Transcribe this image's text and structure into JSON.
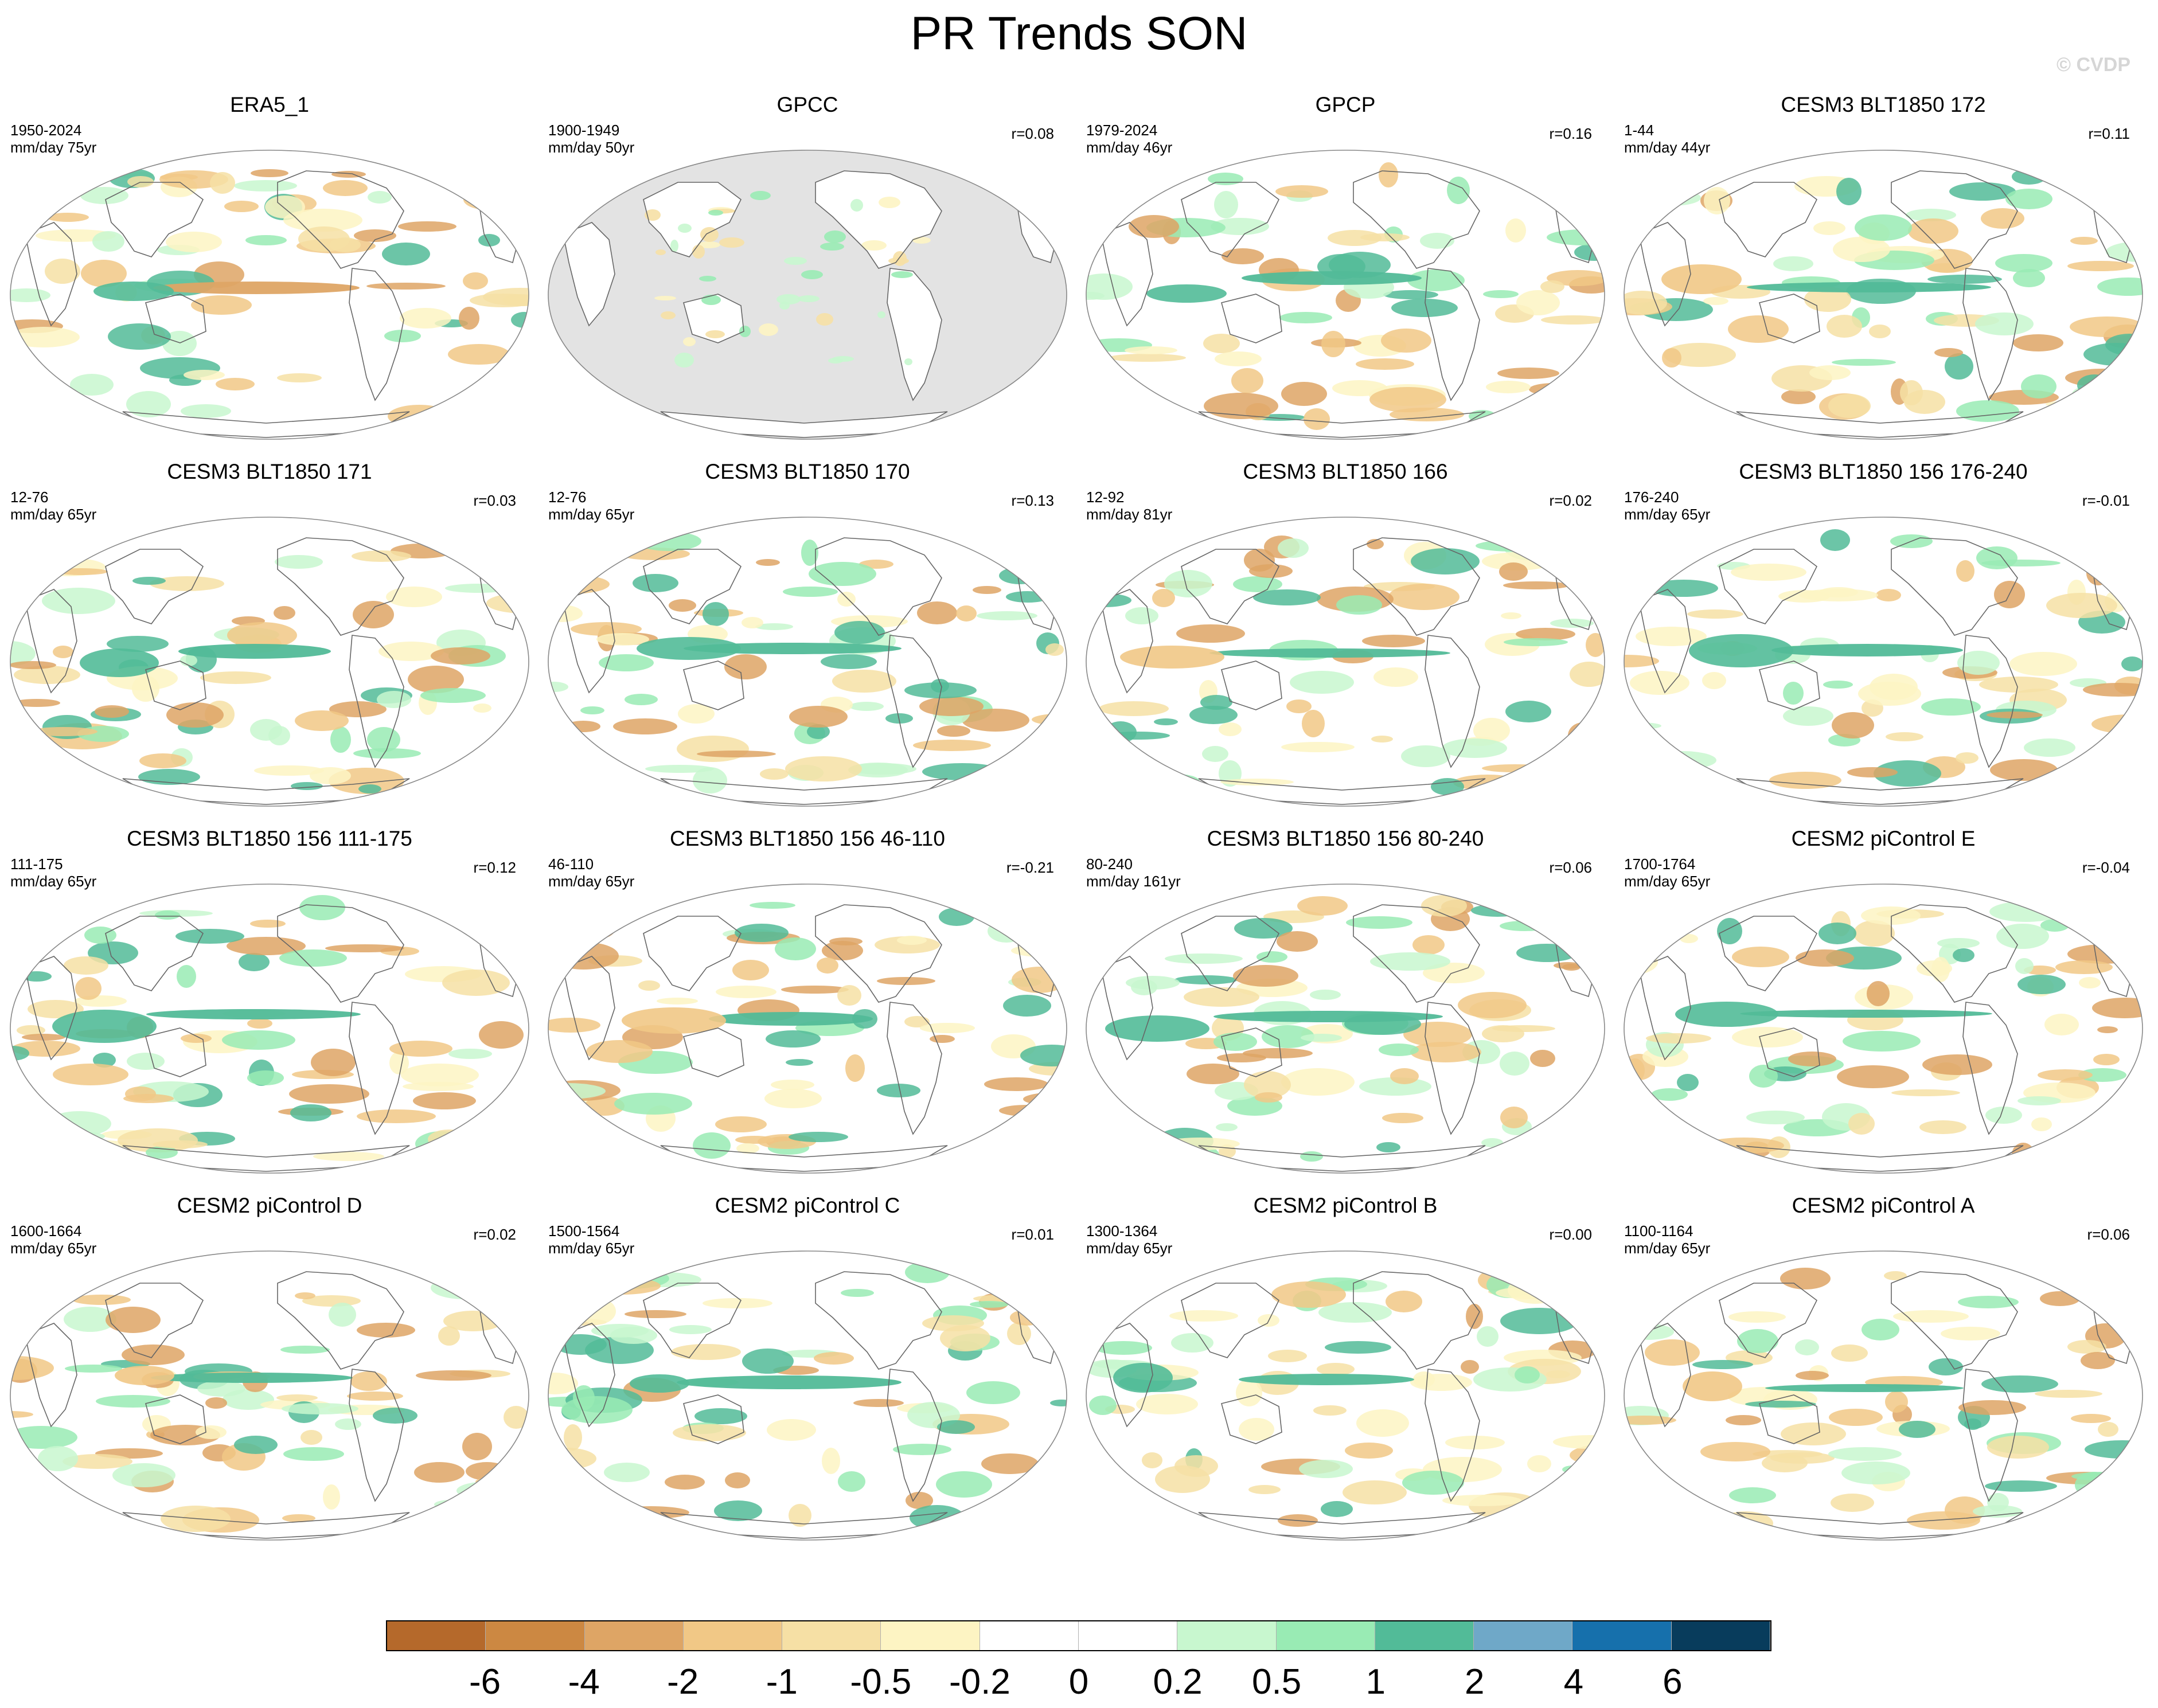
{
  "title": "PR Trends SON",
  "watermark": "© CVDP",
  "panels": [
    {
      "title": "ERA5_1",
      "period": "1950-2024",
      "units": "mm/day 75yr",
      "corr": "",
      "masked": false
    },
    {
      "title": "GPCC",
      "period": "1900-1949",
      "units": "mm/day 50yr",
      "corr": "r=0.08",
      "masked": true
    },
    {
      "title": "GPCP",
      "period": "1979-2024",
      "units": "mm/day 46yr",
      "corr": "r=0.16",
      "masked": false
    },
    {
      "title": "CESM3 BLT1850 172",
      "period": "1-44",
      "units": "mm/day 44yr",
      "corr": "r=0.11",
      "masked": false
    },
    {
      "title": "CESM3 BLT1850 171",
      "period": "12-76",
      "units": "mm/day 65yr",
      "corr": "r=0.03",
      "masked": false
    },
    {
      "title": "CESM3 BLT1850 170",
      "period": "12-76",
      "units": "mm/day 65yr",
      "corr": "r=0.13",
      "masked": false
    },
    {
      "title": "CESM3 BLT1850 166",
      "period": "12-92",
      "units": "mm/day 81yr",
      "corr": "r=0.02",
      "masked": false
    },
    {
      "title": "CESM3 BLT1850 156 176-240",
      "period": "176-240",
      "units": "mm/day 65yr",
      "corr": "r=-0.01",
      "masked": false
    },
    {
      "title": "CESM3 BLT1850 156 111-175",
      "period": "111-175",
      "units": "mm/day 65yr",
      "corr": "r=0.12",
      "masked": false
    },
    {
      "title": "CESM3 BLT1850 156 46-110",
      "period": "46-110",
      "units": "mm/day 65yr",
      "corr": "r=-0.21",
      "masked": false
    },
    {
      "title": "CESM3 BLT1850 156 80-240",
      "period": "80-240",
      "units": "mm/day 161yr",
      "corr": "r=0.06",
      "masked": false
    },
    {
      "title": "CESM2 piControl E",
      "period": "1700-1764",
      "units": "mm/day 65yr",
      "corr": "r=-0.04",
      "masked": false
    },
    {
      "title": "CESM2 piControl D",
      "period": "1600-1664",
      "units": "mm/day 65yr",
      "corr": "r=0.02",
      "masked": false
    },
    {
      "title": "CESM2 piControl C",
      "period": "1500-1564",
      "units": "mm/day 65yr",
      "corr": "r=0.01",
      "masked": false
    },
    {
      "title": "CESM2 piControl B",
      "period": "1300-1364",
      "units": "mm/day 65yr",
      "corr": "r=0.00",
      "masked": false
    },
    {
      "title": "CESM2 piControl A",
      "period": "1100-1164",
      "units": "mm/day 65yr",
      "corr": "r=0.06",
      "masked": false
    }
  ],
  "colorbar": {
    "colors": [
      "#b5692b",
      "#cc8842",
      "#dea565",
      "#f1c886",
      "#f6e0a5",
      "#fdf4c3",
      "#ffffff",
      "#ffffff",
      "#c8f7cf",
      "#99ebb4",
      "#52bb98",
      "#6fa8c8",
      "#1670ac",
      "#083c5c"
    ],
    "labels": [
      "-6",
      "-4",
      "-2",
      "-1",
      "-0.5",
      "-0.2",
      "0",
      "0.2",
      "0.5",
      "1",
      "2",
      "4",
      "6"
    ]
  }
}
